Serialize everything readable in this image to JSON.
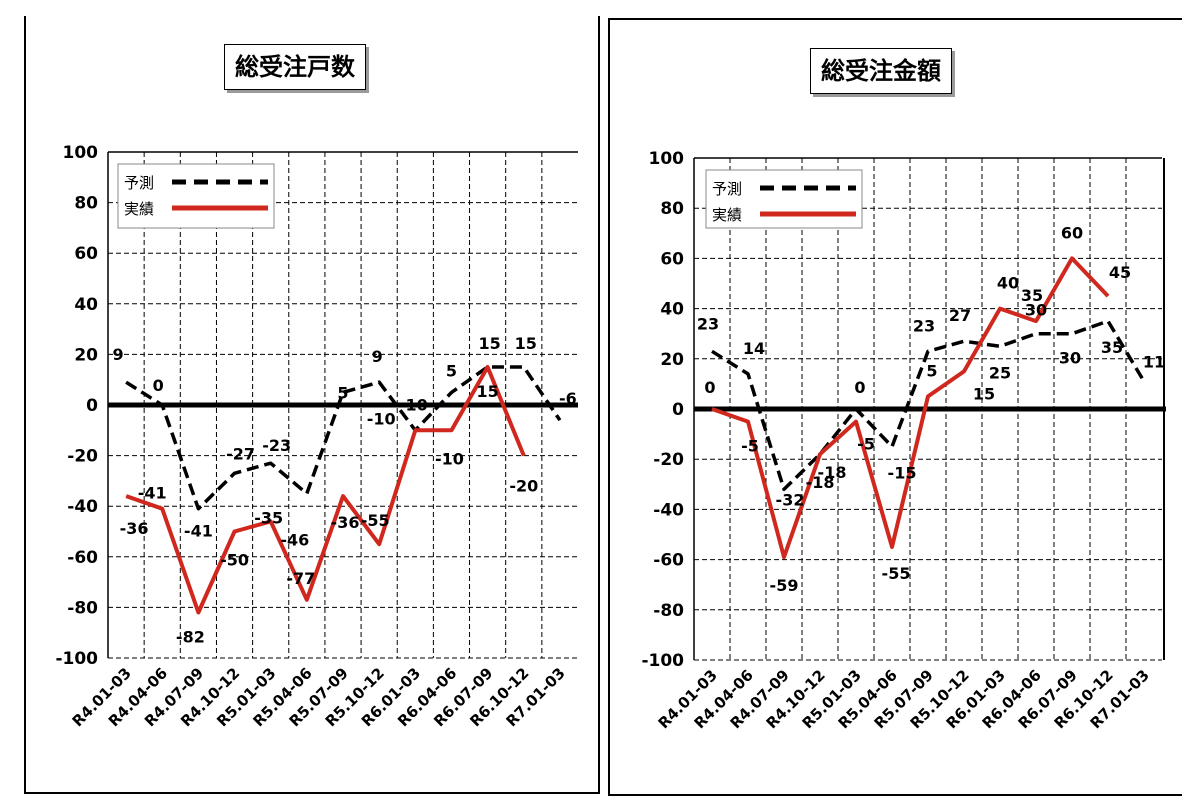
{
  "chart_data": [
    {
      "type": "line",
      "title": "総受注戸数",
      "categories": [
        "R4.01-03",
        "R4.04-06",
        "R4.07-09",
        "R4.10-12",
        "R5.01-03",
        "R5.04-06",
        "R5.07-09",
        "R5.10-12",
        "R6.01-03",
        "R6.04-06",
        "R6.07-09",
        "R6.10-12",
        "R7.01-03"
      ],
      "ylim": [
        -100,
        100
      ],
      "yticks": [
        100,
        80,
        60,
        40,
        20,
        0,
        -20,
        -40,
        -60,
        -80,
        -100
      ],
      "grid": true,
      "legend_position": "top-left",
      "series": [
        {
          "name": "予測",
          "style": "dashed",
          "color": "#000000",
          "values": [
            9,
            0,
            -41,
            -27,
            -23,
            -35,
            5,
            9,
            -10,
            5,
            15,
            15,
            -6
          ]
        },
        {
          "name": "実績",
          "style": "solid",
          "color": "#d0281e",
          "values": [
            -36,
            -41,
            -82,
            -50,
            -46,
            -77,
            -36,
            -55,
            -10,
            -10,
            15,
            -20,
            null
          ]
        }
      ],
      "data_labels": [
        {
          "text": "9",
          "x": 0,
          "y": 9
        },
        {
          "text": "0",
          "x": 1,
          "y": 0
        },
        {
          "text": "-41",
          "x": 2,
          "y": -41
        },
        {
          "text": "-27",
          "x": 3,
          "y": -27
        },
        {
          "text": "-23",
          "x": 4,
          "y": -23
        },
        {
          "text": "5",
          "x": 6,
          "y": 5
        },
        {
          "text": "9",
          "x": 7,
          "y": 9
        },
        {
          "text": "-10",
          "x": 8,
          "y": -10
        },
        {
          "text": "5",
          "x": 9,
          "y": 5
        },
        {
          "text": "15",
          "x": 10,
          "y": 15
        },
        {
          "text": "15",
          "x": 11,
          "y": 15
        },
        {
          "text": "-6",
          "x": 12,
          "y": -6
        },
        {
          "text": "-36",
          "x": 0,
          "y": -36
        },
        {
          "text": "-41",
          "x": 1,
          "y": -41
        },
        {
          "text": "-82",
          "x": 2,
          "y": -82
        },
        {
          "text": "-50",
          "x": 3,
          "y": -50
        },
        {
          "text": "-35",
          "x": 4,
          "y": -35
        },
        {
          "text": "-46",
          "x": 5,
          "y": -46
        },
        {
          "text": "-77",
          "x": 5,
          "y": -77
        },
        {
          "text": "-36",
          "x": 6,
          "y": -36
        },
        {
          "text": "-10",
          "x": 7,
          "y": -10
        },
        {
          "text": "-55",
          "x": 7,
          "y": -55
        },
        {
          "text": "-10",
          "x": 9,
          "y": -10
        },
        {
          "text": "15",
          "x": 10,
          "y": 15
        },
        {
          "text": "-20",
          "x": 11,
          "y": -20
        }
      ]
    },
    {
      "type": "line",
      "title": "総受注金額",
      "categories": [
        "R4.01-03",
        "R4.04-06",
        "R4.07-09",
        "R4.10-12",
        "R5.01-03",
        "R5.04-06",
        "R5.07-09",
        "R5.10-12",
        "R6.01-03",
        "R6.04-06",
        "R6.07-09",
        "R6.10-12",
        "R7.01-03"
      ],
      "ylim": [
        -100,
        100
      ],
      "yticks": [
        100,
        80,
        60,
        40,
        20,
        0,
        -20,
        -40,
        -60,
        -80,
        -100
      ],
      "grid": true,
      "legend_position": "top-left",
      "series": [
        {
          "name": "予測",
          "style": "dashed",
          "color": "#000000",
          "values": [
            23,
            14,
            -32,
            -18,
            0,
            -15,
            23,
            27,
            25,
            30,
            30,
            35,
            11
          ]
        },
        {
          "name": "実績",
          "style": "solid",
          "color": "#d0281e",
          "values": [
            0,
            -5,
            -59,
            -18,
            -5,
            -55,
            5,
            15,
            40,
            35,
            60,
            45,
            null
          ]
        }
      ],
      "data_labels": [
        {
          "text": "23",
          "x": 0,
          "y": 23
        },
        {
          "text": "14",
          "x": 1,
          "y": 14
        },
        {
          "text": "-32",
          "x": 2,
          "y": -32
        },
        {
          "text": "-18",
          "x": 3,
          "y": -18
        },
        {
          "text": "0",
          "x": 4,
          "y": 0
        },
        {
          "text": "-15",
          "x": 5,
          "y": -15
        },
        {
          "text": "23",
          "x": 6,
          "y": 23
        },
        {
          "text": "27",
          "x": 7,
          "y": 27
        },
        {
          "text": "25",
          "x": 8,
          "y": 25
        },
        {
          "text": "30",
          "x": 9,
          "y": 30
        },
        {
          "text": "30",
          "x": 10,
          "y": 30
        },
        {
          "text": "35",
          "x": 11,
          "y": 35
        },
        {
          "text": "11",
          "x": 12,
          "y": 11
        },
        {
          "text": "0",
          "x": 0,
          "y": 0
        },
        {
          "text": "-5",
          "x": 1,
          "y": -5
        },
        {
          "text": "-59",
          "x": 2,
          "y": -59
        },
        {
          "text": "-18",
          "x": 3,
          "y": -18
        },
        {
          "text": "-5",
          "x": 4,
          "y": -5
        },
        {
          "text": "-55",
          "x": 5,
          "y": -55
        },
        {
          "text": "5",
          "x": 6,
          "y": 5
        },
        {
          "text": "15",
          "x": 7,
          "y": 15
        },
        {
          "text": "40",
          "x": 8,
          "y": 40
        },
        {
          "text": "35",
          "x": 9,
          "y": 35
        },
        {
          "text": "60",
          "x": 10,
          "y": 60
        },
        {
          "text": "45",
          "x": 11,
          "y": 45
        }
      ]
    }
  ]
}
